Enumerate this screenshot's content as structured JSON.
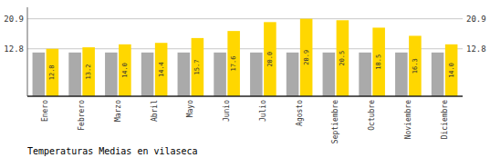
{
  "chart_data": {
    "type": "bar",
    "title": "Temperaturas Medias en vilaseca",
    "categories": [
      "Enero",
      "Febrero",
      "Marzo",
      "Abril",
      "Mayo",
      "Junio",
      "Julio",
      "Agosto",
      "Septiembre",
      "Octubre",
      "Noviembre",
      "Diciembre"
    ],
    "series": [
      {
        "color": "#AAAAAA",
        "values": [
          11.8,
          11.8,
          11.8,
          11.8,
          11.8,
          11.8,
          11.8,
          11.8,
          11.8,
          11.8,
          11.8,
          11.8
        ]
      },
      {
        "color": "#FFD700",
        "values": [
          12.8,
          13.2,
          14.0,
          14.4,
          15.7,
          17.6,
          20.0,
          20.9,
          20.5,
          18.5,
          16.3,
          14.0
        ],
        "value_labels": [
          "12.8",
          "13.2",
          "14.0",
          "14.4",
          "15.7",
          "17.6",
          "20.0",
          "20.9",
          "20.5",
          "18.5",
          "16.3",
          "14.0"
        ],
        "data_labels": true
      }
    ],
    "ylim": [
      0,
      24.0
    ],
    "yticks": [
      12.8,
      20.9
    ],
    "grid": true
  }
}
